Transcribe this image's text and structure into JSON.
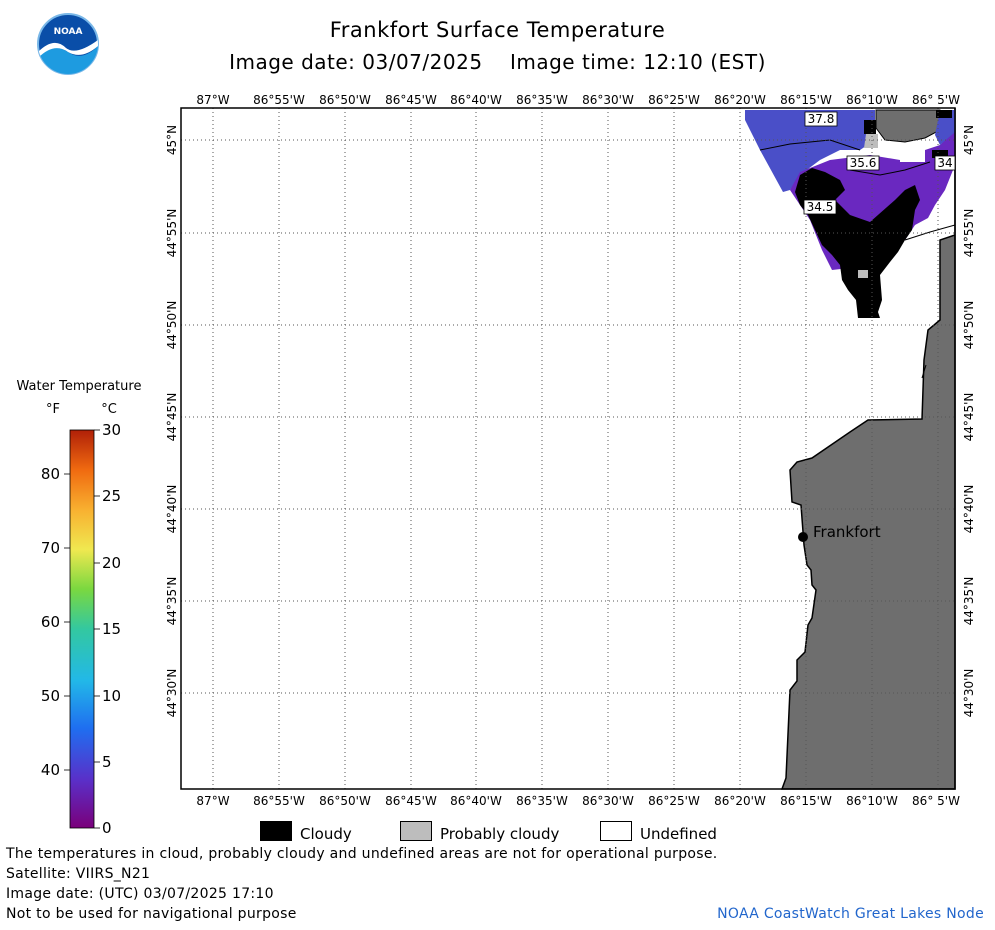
{
  "header": {
    "title": "Frankfort Surface Temperature",
    "subtitle": "Image date: 03/07/2025    Image time: 12:10 (EST)"
  },
  "logo": {
    "text": "NOAA"
  },
  "map": {
    "lon_labels": [
      "87°W",
      "86°55'W",
      "86°50'W",
      "86°45'W",
      "86°40'W",
      "86°35'W",
      "86°30'W",
      "86°25'W",
      "86°20'W",
      "86°15'W",
      "86°10'W",
      "86° 5'W"
    ],
    "lat_labels": [
      "45°N",
      "44°55'N",
      "44°50'N",
      "44°45'N",
      "44°40'N",
      "44°35'N",
      "44°30'N"
    ],
    "place": "Frankfort",
    "temp_labels": [
      "37.8",
      "35.6",
      "34",
      "34.5"
    ],
    "colors": {
      "land": "#6e6e6e",
      "cloud": "#000000",
      "probably_cloudy": "#bdbdbd",
      "water_warm": "#4a4fc8",
      "water_cool": "#6a28c0"
    }
  },
  "colorbar": {
    "title": "Water Temperature",
    "unit_f": "°F",
    "unit_c": "°C",
    "f_ticks": [
      "80",
      "70",
      "60",
      "50",
      "40"
    ],
    "c_ticks": [
      "30",
      "25",
      "20",
      "15",
      "10",
      "5",
      "0"
    ]
  },
  "legend": {
    "cloudy": "Cloudy",
    "probably_cloudy": "Probably cloudy",
    "undefined": "Undefined"
  },
  "footer": {
    "note": "The temperatures in cloud, probably cloudy and undefined areas are not for operational purpose.",
    "satellite": "Satellite: VIIRS_N21",
    "utc_date": "Image date: (UTC) 03/07/2025  17:10",
    "nav": "Not to be used for navigational purpose",
    "credit": "NOAA CoastWatch Great Lakes Node"
  }
}
